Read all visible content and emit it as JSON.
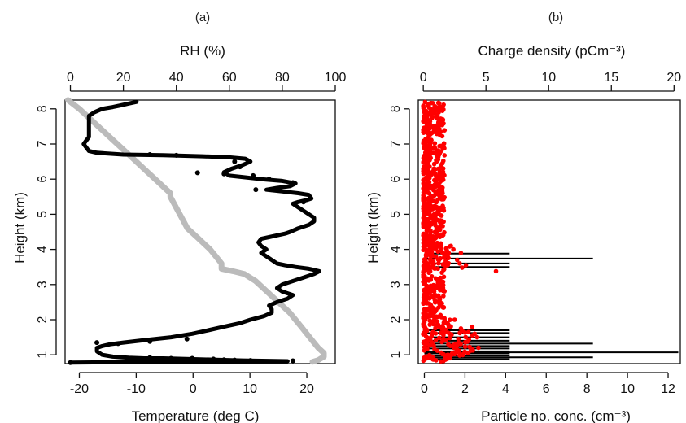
{
  "chart_data": [
    {
      "type": "scatter",
      "panel_label": "(a)",
      "top_axis": {
        "label": "RH (%)",
        "range": [
          -2,
          100
        ],
        "ticks": [
          0,
          20,
          40,
          60,
          80,
          100
        ]
      },
      "bottom_axis": {
        "label": "Temperature (deg C)",
        "range": [
          -22.5,
          25
        ],
        "ticks": [
          -20,
          -10,
          0,
          10,
          20
        ]
      },
      "y_axis": {
        "label": "Height (km)",
        "range": [
          0.75,
          8.25
        ],
        "ticks": [
          1,
          2,
          3,
          4,
          5,
          6,
          7,
          8
        ]
      },
      "series": [
        {
          "axis": "top",
          "color": "#000000",
          "points": [
            [
              25,
              8.2
            ],
            [
              22,
              8.15
            ],
            [
              19,
              8.1
            ],
            [
              16,
              8.05
            ],
            [
              12,
              8.0
            ],
            [
              9,
              7.9
            ],
            [
              7,
              7.8
            ],
            [
              7,
              7.5
            ],
            [
              7,
              7.3
            ],
            [
              7,
              7.2
            ],
            [
              6,
              7.1
            ],
            [
              5,
              7.0
            ],
            [
              6,
              6.9
            ],
            [
              7,
              6.8
            ],
            [
              10,
              6.75
            ],
            [
              20,
              6.7
            ],
            [
              35,
              6.68
            ],
            [
              50,
              6.65
            ],
            [
              60,
              6.62
            ],
            [
              66,
              6.58
            ],
            [
              68,
              6.5
            ],
            [
              65,
              6.4
            ],
            [
              61,
              6.3
            ],
            [
              58,
              6.2
            ],
            [
              60,
              6.1
            ],
            [
              66,
              6.05
            ],
            [
              72,
              6.0
            ],
            [
              80,
              5.95
            ],
            [
              85,
              5.88
            ],
            [
              83,
              5.8
            ],
            [
              78,
              5.75
            ],
            [
              74,
              5.7
            ],
            [
              80,
              5.65
            ],
            [
              86,
              5.6
            ],
            [
              90,
              5.55
            ],
            [
              91,
              5.45
            ],
            [
              89,
              5.4
            ],
            [
              86,
              5.35
            ],
            [
              84,
              5.3
            ],
            [
              86,
              5.2
            ],
            [
              88,
              5.1
            ],
            [
              90,
              5.0
            ],
            [
              92,
              4.9
            ],
            [
              92,
              4.8
            ],
            [
              90,
              4.7
            ],
            [
              86,
              4.6
            ],
            [
              83,
              4.5
            ],
            [
              81,
              4.45
            ],
            [
              78,
              4.4
            ],
            [
              75,
              4.35
            ],
            [
              72,
              4.3
            ],
            [
              71,
              4.2
            ],
            [
              72,
              4.1
            ],
            [
              74,
              4.0
            ],
            [
              72,
              3.9
            ],
            [
              74,
              3.8
            ],
            [
              76,
              3.7
            ],
            [
              78,
              3.6
            ],
            [
              81,
              3.55
            ],
            [
              85,
              3.5
            ],
            [
              90,
              3.45
            ],
            [
              94,
              3.38
            ],
            [
              92,
              3.3
            ],
            [
              88,
              3.2
            ],
            [
              84,
              3.1
            ],
            [
              80,
              3.0
            ],
            [
              78,
              2.9
            ],
            [
              80,
              2.8
            ],
            [
              84,
              2.7
            ],
            [
              82,
              2.6
            ],
            [
              78,
              2.5
            ],
            [
              75,
              2.4
            ],
            [
              76,
              2.3
            ],
            [
              76,
              2.2
            ],
            [
              73,
              2.1
            ],
            [
              68,
              2.0
            ],
            [
              64,
              1.9
            ],
            [
              58,
              1.8
            ],
            [
              52,
              1.7
            ],
            [
              46,
              1.6
            ],
            [
              38,
              1.5
            ],
            [
              28,
              1.42
            ],
            [
              20,
              1.35
            ],
            [
              15,
              1.3
            ],
            [
              12,
              1.25
            ],
            [
              10,
              1.2
            ],
            [
              10,
              1.1
            ],
            [
              12,
              1.0
            ],
            [
              16,
              0.95
            ],
            [
              22,
              0.92
            ],
            [
              28,
              0.9
            ],
            [
              35,
              0.9
            ],
            [
              45,
              0.88
            ],
            [
              55,
              0.86
            ],
            [
              65,
              0.84
            ],
            [
              82,
              0.82
            ],
            [
              0,
              0.78
            ]
          ],
          "scatter_points": [
            [
              30,
              6.7
            ],
            [
              40,
              6.68
            ],
            [
              55,
              6.63
            ],
            [
              62,
              6.5
            ],
            [
              64,
              6.35
            ],
            [
              58,
              6.15
            ],
            [
              48,
              6.18
            ],
            [
              69,
              6.1
            ],
            [
              75,
              6.0
            ],
            [
              76,
              5.7
            ],
            [
              70,
              5.7
            ],
            [
              84,
              5.9
            ],
            [
              88,
              5.35
            ],
            [
              10,
              1.35
            ],
            [
              18,
              1.32
            ],
            [
              30,
              1.38
            ],
            [
              44,
              1.45
            ],
            [
              22,
              0.88
            ],
            [
              30,
              0.92
            ],
            [
              38,
              0.9
            ],
            [
              46,
              0.9
            ],
            [
              54,
              0.88
            ],
            [
              58,
              0.86
            ],
            [
              62,
              0.85
            ],
            [
              68,
              0.84
            ],
            [
              84,
              0.83
            ],
            [
              0,
              0.78
            ]
          ]
        },
        {
          "axis": "bottom",
          "color": "#bbbbbb",
          "points": [
            [
              -22,
              8.25
            ],
            [
              -20,
              8.0
            ],
            [
              -18,
              7.7
            ],
            [
              -16,
              7.4
            ],
            [
              -14,
              7.1
            ],
            [
              -12,
              6.8
            ],
            [
              -10,
              6.5
            ],
            [
              -8,
              6.2
            ],
            [
              -6,
              5.9
            ],
            [
              -4,
              5.6
            ],
            [
              -4,
              5.5
            ],
            [
              -3,
              5.2
            ],
            [
              -2,
              4.9
            ],
            [
              -1,
              4.6
            ],
            [
              1,
              4.3
            ],
            [
              3,
              4.0
            ],
            [
              4,
              3.8
            ],
            [
              5,
              3.6
            ],
            [
              5,
              3.45
            ],
            [
              7,
              3.38
            ],
            [
              9,
              3.3
            ],
            [
              11,
              3.1
            ],
            [
              13,
              2.8
            ],
            [
              15,
              2.5
            ],
            [
              17,
              2.2
            ],
            [
              18,
              2.0
            ],
            [
              19,
              1.8
            ],
            [
              20,
              1.6
            ],
            [
              21,
              1.4
            ],
            [
              22,
              1.2
            ],
            [
              23,
              1.05
            ],
            [
              23,
              0.95
            ],
            [
              22,
              0.85
            ],
            [
              21,
              0.8
            ]
          ]
        }
      ]
    },
    {
      "type": "scatter",
      "panel_label": "(b)",
      "top_axis": {
        "label": "Charge density (pCm⁻³)",
        "range": [
          -0.4,
          20.5
        ],
        "ticks": [
          0,
          5,
          10,
          15,
          20
        ]
      },
      "bottom_axis": {
        "label": "Particle no. conc. (cm⁻³)",
        "range": [
          -0.3,
          12.6
        ],
        "ticks": [
          0,
          2,
          4,
          6,
          8,
          10,
          12
        ]
      },
      "y_axis": {
        "label": "Height (km)",
        "range": [
          0.75,
          8.25
        ],
        "ticks": [
          1,
          2,
          3,
          4,
          5,
          6,
          7,
          8
        ]
      },
      "series": [
        {
          "axis": "bottom",
          "color": "#000000",
          "horizontal_lines": [
            [
              3.88,
              4.2
            ],
            [
              3.74,
              8.3
            ],
            [
              3.6,
              4.2
            ],
            [
              3.5,
              4.2
            ],
            [
              1.7,
              4.2
            ],
            [
              1.62,
              4.2
            ],
            [
              1.5,
              4.2
            ],
            [
              1.4,
              4.2
            ],
            [
              1.32,
              8.3
            ],
            [
              1.25,
              4.2
            ],
            [
              1.18,
              4.2
            ],
            [
              1.1,
              4.2
            ],
            [
              1.07,
              12.5
            ],
            [
              1.04,
              4.2
            ],
            [
              0.98,
              4.2
            ],
            [
              0.93,
              8.3
            ],
            [
              0.88,
              4.2
            ]
          ]
        },
        {
          "axis": "top",
          "color": "#ff0000",
          "outliers": [
            [
              2.4,
              4.0
            ],
            [
              3.0,
              3.9
            ],
            [
              2.7,
              3.7
            ],
            [
              2.9,
              3.6
            ],
            [
              3.4,
              3.55
            ],
            [
              3.1,
              3.48
            ],
            [
              5.8,
              3.38
            ],
            [
              2.2,
              4.1
            ],
            [
              4.3,
              1.5
            ],
            [
              4.1,
              1.6
            ],
            [
              3.9,
              1.8
            ],
            [
              2.5,
              2.0
            ],
            [
              3.0,
              1.75
            ],
            [
              3.6,
              1.65
            ],
            [
              2.2,
              1.55
            ],
            [
              2.8,
              1.45
            ],
            [
              4.4,
              1.2
            ],
            [
              3.8,
              1.12
            ],
            [
              2.5,
              1.02
            ],
            [
              2.9,
              0.98
            ],
            [
              2.0,
              1.3
            ]
          ]
        }
      ]
    }
  ]
}
